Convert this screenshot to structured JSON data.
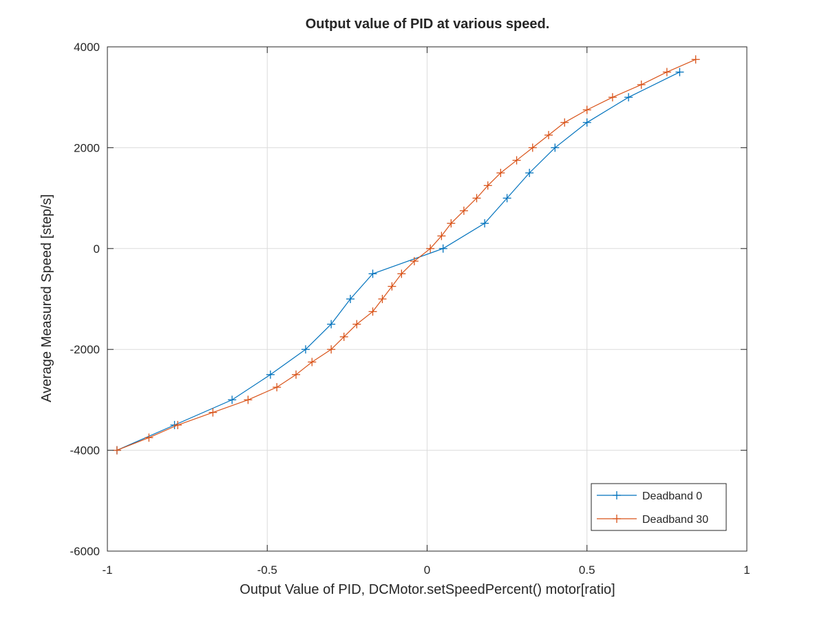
{
  "chart_data": {
    "type": "line",
    "title": "Output value of PID at various speed.",
    "xlabel": "Output Value of PID, DCMotor.setSpeedPercent() motor[ratio]",
    "ylabel": "Average Measured Speed [step/s]",
    "xlim": [
      -1,
      1
    ],
    "ylim": [
      -6000,
      4000
    ],
    "xticks": [
      -1,
      -0.5,
      0,
      0.5,
      1
    ],
    "xtick_labels": [
      "-1",
      "-0.5",
      "0",
      "0.5",
      "1"
    ],
    "yticks": [
      -6000,
      -4000,
      -2000,
      0,
      2000,
      4000
    ],
    "ytick_labels": [
      "-6000",
      "-4000",
      "-2000",
      "0",
      "2000",
      "4000"
    ],
    "grid": true,
    "legend_position": "bottom-right",
    "marker": "plus",
    "series": [
      {
        "name": "Deadband 0",
        "color": "#0072BD",
        "x": [
          -0.97,
          -0.79,
          -0.61,
          -0.49,
          -0.38,
          -0.3,
          -0.24,
          -0.17,
          0.05,
          0.18,
          0.25,
          0.32,
          0.4,
          0.5,
          0.63,
          0.79
        ],
        "y": [
          -4000,
          -3500,
          -3000,
          -2500,
          -2000,
          -1500,
          -1000,
          -500,
          0,
          500,
          1000,
          1500,
          2000,
          2500,
          3000,
          3500
        ]
      },
      {
        "name": "Deadband 30",
        "color": "#D95319",
        "x": [
          -0.97,
          -0.87,
          -0.78,
          -0.67,
          -0.56,
          -0.47,
          -0.41,
          -0.36,
          -0.3,
          -0.26,
          -0.22,
          -0.17,
          -0.14,
          -0.11,
          -0.08,
          -0.04,
          0.01,
          0.045,
          0.075,
          0.115,
          0.155,
          0.19,
          0.23,
          0.28,
          0.33,
          0.38,
          0.43,
          0.5,
          0.58,
          0.67,
          0.75,
          0.84
        ],
        "y": [
          -4000,
          -3750,
          -3500,
          -3250,
          -3000,
          -2750,
          -2500,
          -2250,
          -2000,
          -1750,
          -1500,
          -1250,
          -1000,
          -750,
          -500,
          -250,
          0,
          250,
          500,
          750,
          1000,
          1250,
          1500,
          1750,
          2000,
          2250,
          2500,
          2750,
          3000,
          3250,
          3500,
          3750
        ]
      }
    ]
  }
}
